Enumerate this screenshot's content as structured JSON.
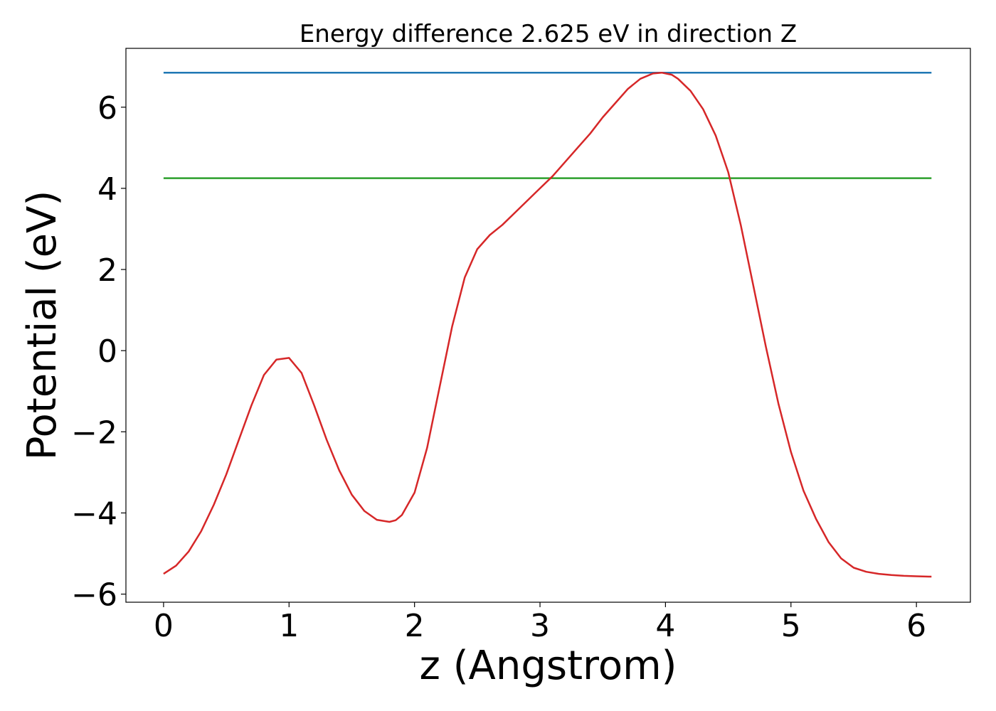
{
  "chart_data": {
    "type": "line",
    "title": "Energy difference 2.625 eV in direction Z",
    "xlabel": "z (Angstrom)",
    "ylabel": "Potential (eV)",
    "xlim": [
      -0.3,
      6.43
    ],
    "ylim": [
      -6.2,
      7.45
    ],
    "xticks": [
      0,
      1,
      2,
      3,
      4,
      5,
      6
    ],
    "yticks": [
      -6,
      -4,
      -2,
      0,
      2,
      4,
      6
    ],
    "xtick_labels": [
      "0",
      "1",
      "2",
      "3",
      "4",
      "5",
      "6"
    ],
    "ytick_labels": [
      "−6",
      "−4",
      "−2",
      "0",
      "2",
      "4",
      "6"
    ],
    "grid": false,
    "series": [
      {
        "color": "#1f77b4",
        "x": [
          0,
          6.12
        ],
        "y": [
          6.85,
          6.85
        ]
      },
      {
        "color": "#2ca02c",
        "x": [
          0,
          6.12
        ],
        "y": [
          4.25,
          4.25
        ]
      },
      {
        "color": "#d62728",
        "x": [
          0,
          0.1,
          0.2,
          0.3,
          0.4,
          0.5,
          0.6,
          0.7,
          0.8,
          0.9,
          1.0,
          1.1,
          1.2,
          1.3,
          1.4,
          1.5,
          1.6,
          1.7,
          1.8,
          1.85,
          1.9,
          2.0,
          2.1,
          2.2,
          2.3,
          2.4,
          2.5,
          2.6,
          2.7,
          2.8,
          2.9,
          3.0,
          3.1,
          3.2,
          3.3,
          3.4,
          3.5,
          3.6,
          3.7,
          3.8,
          3.9,
          3.97,
          4.05,
          4.1,
          4.2,
          4.3,
          4.4,
          4.5,
          4.6,
          4.7,
          4.8,
          4.9,
          5.0,
          5.1,
          5.2,
          5.3,
          5.4,
          5.5,
          5.6,
          5.7,
          5.8,
          5.9,
          6.0,
          6.1,
          6.12
        ],
        "y": [
          -5.5,
          -5.3,
          -4.95,
          -4.45,
          -3.8,
          -3.05,
          -2.2,
          -1.35,
          -0.6,
          -0.22,
          -0.18,
          -0.55,
          -1.35,
          -2.2,
          -2.95,
          -3.55,
          -3.95,
          -4.17,
          -4.22,
          -4.18,
          -4.05,
          -3.5,
          -2.4,
          -0.9,
          0.6,
          1.8,
          2.5,
          2.85,
          3.1,
          3.4,
          3.7,
          4.0,
          4.3,
          4.65,
          5.0,
          5.35,
          5.75,
          6.1,
          6.45,
          6.7,
          6.83,
          6.85,
          6.8,
          6.7,
          6.4,
          5.95,
          5.3,
          4.4,
          3.1,
          1.6,
          0.1,
          -1.3,
          -2.5,
          -3.45,
          -4.15,
          -4.72,
          -5.12,
          -5.35,
          -5.45,
          -5.5,
          -5.53,
          -5.55,
          -5.56,
          -5.57,
          -5.57
        ]
      }
    ]
  }
}
